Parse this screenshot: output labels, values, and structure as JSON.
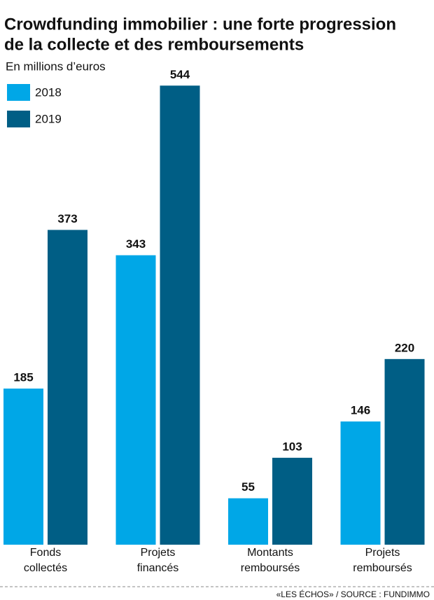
{
  "chart_data": {
    "type": "bar",
    "title": "Crowdfunding immobilier : une forte progression",
    "title_line2": "de la collecte et des remboursements",
    "subtitle": "En millions d’euros",
    "categories": [
      "Fonds collectés",
      "Projets financés",
      "Montants remboursés",
      "Projets remboursés"
    ],
    "series": [
      {
        "name": "2018",
        "color": "#00a7e7",
        "values": [
          185,
          343,
          55,
          146
        ]
      },
      {
        "name": "2019",
        "color": "#005e85",
        "values": [
          373,
          544,
          103,
          220
        ]
      }
    ],
    "ylim": [
      0,
      560
    ],
    "legend": "top-left",
    "source": "«LES ÉCHOS» / SOURCE : FUNDIMMO"
  }
}
